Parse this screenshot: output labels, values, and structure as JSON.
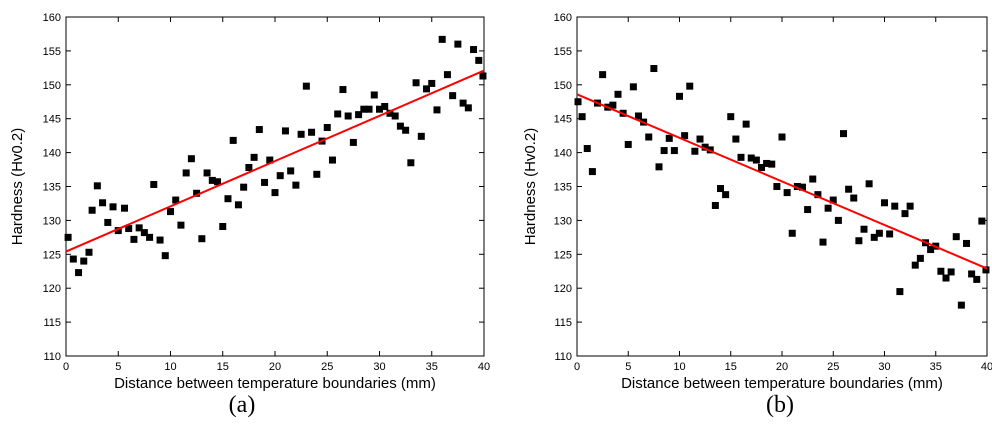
{
  "chart_data": [
    {
      "type": "scatter",
      "panel_label": "(a)",
      "xlabel": "Distance between temperature boundaries (mm)",
      "ylabel": "Hardness (Hv0.2)",
      "xlim": [
        0,
        40
      ],
      "ylim": [
        110,
        160
      ],
      "xticks": [
        0,
        5,
        10,
        15,
        20,
        25,
        30,
        35,
        40
      ],
      "yticks": [
        110,
        115,
        120,
        125,
        130,
        135,
        140,
        145,
        150,
        155,
        160
      ],
      "grid": false,
      "marker_color": "#000000",
      "fit_color": "#ff0000",
      "fit_line": {
        "x": [
          0,
          40
        ],
        "y": [
          125.4,
          152.1
        ]
      },
      "points": [
        [
          0.2,
          127.5
        ],
        [
          0.7,
          124.3
        ],
        [
          1.2,
          122.3
        ],
        [
          1.7,
          124.0
        ],
        [
          2.2,
          125.3
        ],
        [
          2.5,
          131.5
        ],
        [
          3.0,
          135.1
        ],
        [
          3.5,
          132.6
        ],
        [
          4.0,
          129.7
        ],
        [
          4.5,
          132.0
        ],
        [
          5.0,
          128.5
        ],
        [
          5.6,
          131.8
        ],
        [
          6.0,
          128.8
        ],
        [
          6.5,
          127.2
        ],
        [
          7.0,
          128.9
        ],
        [
          7.5,
          128.2
        ],
        [
          8.0,
          127.5
        ],
        [
          8.4,
          135.3
        ],
        [
          9.0,
          127.1
        ],
        [
          9.5,
          124.8
        ],
        [
          10.0,
          131.3
        ],
        [
          10.5,
          133.0
        ],
        [
          11.0,
          129.3
        ],
        [
          11.5,
          137.0
        ],
        [
          12.0,
          139.1
        ],
        [
          12.5,
          134.0
        ],
        [
          13.0,
          127.3
        ],
        [
          13.5,
          137.0
        ],
        [
          14.0,
          135.9
        ],
        [
          14.5,
          135.7
        ],
        [
          15.0,
          129.1
        ],
        [
          15.5,
          133.2
        ],
        [
          16.0,
          141.8
        ],
        [
          16.5,
          132.3
        ],
        [
          17.0,
          134.9
        ],
        [
          17.5,
          137.8
        ],
        [
          18.0,
          139.3
        ],
        [
          18.5,
          143.4
        ],
        [
          19.0,
          135.6
        ],
        [
          19.5,
          138.9
        ],
        [
          20.0,
          134.1
        ],
        [
          20.5,
          136.6
        ],
        [
          21.0,
          143.2
        ],
        [
          21.5,
          137.3
        ],
        [
          22.0,
          135.2
        ],
        [
          22.5,
          142.7
        ],
        [
          23.0,
          149.8
        ],
        [
          23.5,
          143.0
        ],
        [
          24.0,
          136.8
        ],
        [
          24.5,
          141.7
        ],
        [
          25.0,
          143.7
        ],
        [
          25.5,
          138.9
        ],
        [
          26.0,
          145.7
        ],
        [
          26.5,
          149.3
        ],
        [
          27.0,
          145.4
        ],
        [
          27.5,
          141.5
        ],
        [
          28.0,
          145.6
        ],
        [
          28.5,
          146.4
        ],
        [
          29.0,
          146.4
        ],
        [
          29.5,
          148.5
        ],
        [
          30.0,
          146.4
        ],
        [
          30.5,
          146.8
        ],
        [
          31.0,
          145.8
        ],
        [
          31.5,
          145.4
        ],
        [
          32.0,
          143.9
        ],
        [
          32.5,
          143.3
        ],
        [
          33.0,
          138.5
        ],
        [
          33.5,
          150.3
        ],
        [
          34.0,
          142.4
        ],
        [
          34.5,
          149.4
        ],
        [
          35.0,
          150.2
        ],
        [
          35.5,
          146.3
        ],
        [
          36.0,
          156.7
        ],
        [
          36.5,
          151.5
        ],
        [
          37.0,
          148.4
        ],
        [
          37.5,
          156.0
        ],
        [
          38.0,
          147.3
        ],
        [
          38.5,
          146.6
        ],
        [
          39.0,
          155.2
        ],
        [
          39.5,
          153.6
        ],
        [
          39.9,
          151.3
        ]
      ]
    },
    {
      "type": "scatter",
      "panel_label": "(b)",
      "xlabel": "Distance between temperature boundaries (mm)",
      "ylabel": "Hardness (Hv0.2)",
      "xlim": [
        0,
        40
      ],
      "ylim": [
        110,
        160
      ],
      "xticks": [
        0,
        5,
        10,
        15,
        20,
        25,
        30,
        35,
        40
      ],
      "yticks": [
        110,
        115,
        120,
        125,
        130,
        135,
        140,
        145,
        150,
        155,
        160
      ],
      "grid": false,
      "marker_color": "#000000",
      "fit_color": "#ff0000",
      "fit_line": {
        "x": [
          0,
          40
        ],
        "y": [
          148.6,
          122.9
        ]
      },
      "points": [
        [
          0.1,
          147.5
        ],
        [
          0.5,
          145.3
        ],
        [
          1.0,
          140.6
        ],
        [
          1.5,
          137.2
        ],
        [
          2.0,
          147.3
        ],
        [
          2.5,
          151.5
        ],
        [
          3.0,
          146.7
        ],
        [
          3.5,
          147.0
        ],
        [
          4.0,
          148.6
        ],
        [
          4.5,
          145.8
        ],
        [
          5.0,
          141.2
        ],
        [
          5.5,
          149.7
        ],
        [
          6.0,
          145.4
        ],
        [
          6.5,
          144.5
        ],
        [
          7.0,
          142.3
        ],
        [
          7.5,
          152.4
        ],
        [
          8.0,
          137.9
        ],
        [
          8.5,
          140.3
        ],
        [
          9.0,
          142.1
        ],
        [
          9.5,
          140.3
        ],
        [
          10.0,
          148.3
        ],
        [
          10.5,
          142.5
        ],
        [
          11.0,
          149.8
        ],
        [
          11.5,
          140.2
        ],
        [
          12.0,
          142.0
        ],
        [
          12.5,
          140.8
        ],
        [
          13.0,
          140.4
        ],
        [
          13.5,
          132.2
        ],
        [
          14.0,
          134.7
        ],
        [
          14.5,
          133.8
        ],
        [
          15.0,
          145.3
        ],
        [
          15.5,
          142.0
        ],
        [
          16.0,
          139.3
        ],
        [
          16.5,
          144.2
        ],
        [
          17.0,
          139.2
        ],
        [
          17.5,
          138.9
        ],
        [
          18.0,
          137.8
        ],
        [
          18.5,
          138.4
        ],
        [
          19.0,
          138.3
        ],
        [
          19.5,
          135.0
        ],
        [
          20.0,
          142.3
        ],
        [
          20.5,
          134.1
        ],
        [
          21.0,
          128.1
        ],
        [
          21.5,
          135.0
        ],
        [
          22.0,
          134.9
        ],
        [
          22.5,
          131.6
        ],
        [
          23.0,
          136.1
        ],
        [
          23.5,
          133.8
        ],
        [
          24.0,
          126.8
        ],
        [
          24.5,
          131.8
        ],
        [
          25.0,
          133.0
        ],
        [
          25.5,
          130.0
        ],
        [
          26.0,
          142.8
        ],
        [
          26.5,
          134.6
        ],
        [
          27.0,
          133.3
        ],
        [
          27.5,
          127.0
        ],
        [
          28.0,
          128.7
        ],
        [
          28.5,
          135.4
        ],
        [
          29.0,
          127.5
        ],
        [
          29.5,
          128.1
        ],
        [
          30.0,
          132.6
        ],
        [
          30.5,
          128.0
        ],
        [
          31.0,
          132.1
        ],
        [
          31.5,
          119.5
        ],
        [
          32.0,
          131.0
        ],
        [
          32.5,
          132.1
        ],
        [
          33.0,
          123.4
        ],
        [
          33.5,
          124.4
        ],
        [
          34.0,
          126.7
        ],
        [
          34.5,
          125.7
        ],
        [
          35.0,
          126.2
        ],
        [
          35.5,
          122.5
        ],
        [
          36.0,
          121.5
        ],
        [
          36.5,
          122.4
        ],
        [
          37.0,
          127.6
        ],
        [
          37.5,
          117.5
        ],
        [
          38.0,
          126.6
        ],
        [
          38.5,
          122.1
        ],
        [
          39.0,
          121.3
        ],
        [
          39.5,
          129.9
        ],
        [
          39.9,
          122.7
        ]
      ]
    }
  ]
}
